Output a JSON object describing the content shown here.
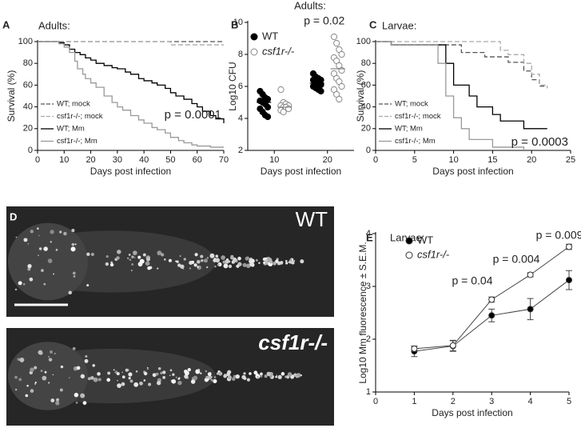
{
  "chart_data": [
    {
      "type": "step",
      "label": "A",
      "title": "Adults:",
      "xlabel": "Days post infection",
      "ylabel": "Survival (%)",
      "xlim": [
        0,
        70
      ],
      "xticks": [
        0,
        10,
        20,
        30,
        40,
        50,
        60,
        70
      ],
      "ylim": [
        0,
        100
      ],
      "yticks": [
        0,
        20,
        40,
        60,
        80,
        100
      ],
      "legend": "lower left",
      "annotation": "p = 0.0001",
      "series": [
        {
          "name": "WT; mock",
          "color": "#555555",
          "line_style": "dashed",
          "x": [
            0,
            70
          ],
          "values": [
            100,
            100
          ]
        },
        {
          "name": "csf1r-/-; mock",
          "color": "#aaaaaa",
          "line_style": "dashed",
          "x": [
            0,
            50,
            70
          ],
          "values": [
            100,
            97,
            97
          ]
        },
        {
          "name": "WT; Mm",
          "color": "#000000",
          "line_style": "solid",
          "x": [
            0,
            8,
            10,
            12,
            14,
            16,
            18,
            20,
            22,
            25,
            28,
            30,
            33,
            35,
            38,
            40,
            43,
            45,
            48,
            50,
            52,
            55,
            58,
            60,
            62,
            65,
            67,
            70
          ],
          "values": [
            100,
            99,
            97,
            93,
            90,
            88,
            85,
            83,
            80,
            78,
            76,
            75,
            72,
            70,
            66,
            64,
            62,
            60,
            57,
            53,
            50,
            47,
            43,
            40,
            36,
            32,
            29,
            25
          ]
        },
        {
          "name": "csf1r-/-; Mm",
          "color": "#999999",
          "line_style": "solid",
          "x": [
            0,
            8,
            10,
            12,
            14,
            15,
            17,
            18,
            20,
            22,
            25,
            28,
            30,
            32,
            35,
            38,
            40,
            43,
            45,
            48,
            50,
            53,
            55,
            58,
            60,
            65,
            70
          ],
          "values": [
            100,
            98,
            95,
            90,
            82,
            75,
            70,
            66,
            62,
            58,
            50,
            44,
            40,
            37,
            32,
            28,
            25,
            21,
            19,
            16,
            12,
            9,
            7,
            5,
            4,
            3,
            3
          ]
        }
      ]
    },
    {
      "type": "dot-strip",
      "label": "B",
      "title": "Adults:",
      "xlabel": "Days post infection",
      "ylabel": "Log10 CFU",
      "categories": [
        "10",
        "20"
      ],
      "ylim": [
        2,
        10
      ],
      "yticks": [
        2,
        4,
        6,
        8,
        10
      ],
      "annotation": "p = 0.02",
      "series": [
        {
          "name": "WT",
          "color": "#000000",
          "marker": "filled",
          "values": [
            [
              5.7,
              5.5,
              5.3,
              5.2,
              5.1,
              5.0,
              4.9,
              4.7,
              4.6,
              4.4,
              4.2,
              4.1
            ],
            [
              6.8,
              6.6,
              6.5,
              6.4,
              6.4,
              6.3,
              6.2,
              6.1,
              6.0,
              5.9,
              5.8,
              5.7
            ]
          ],
          "means": [
            5.0,
            6.2
          ]
        },
        {
          "name": "csf1r-/-",
          "color": "#888888",
          "marker": "open",
          "values": [
            [
              5.8,
              5.0,
              4.9,
              4.8,
              4.8,
              4.7,
              4.7,
              4.6,
              4.5,
              4.4
            ],
            [
              9.1,
              8.7,
              8.3,
              8.0,
              7.8,
              7.6,
              7.3,
              7.0,
              6.8,
              6.5,
              6.3,
              6.0,
              5.8,
              5.5,
              5.2
            ]
          ],
          "means": [
            4.7,
            7.1
          ]
        }
      ]
    },
    {
      "type": "step",
      "label": "C",
      "title": "Larvae:",
      "xlabel": "Days post infection",
      "ylabel": "Survival (%)",
      "xlim": [
        0,
        25
      ],
      "xticks": [
        0,
        5,
        10,
        15,
        20,
        25
      ],
      "ylim": [
        0,
        100
      ],
      "yticks": [
        0,
        20,
        40,
        60,
        80,
        100
      ],
      "legend": "lower left",
      "annotation": "p = 0.0003",
      "series": [
        {
          "name": "WT; mock",
          "color": "#555555",
          "line_style": "dashed",
          "x": [
            0,
            2,
            11,
            14,
            17,
            19,
            20,
            21,
            22
          ],
          "values": [
            100,
            97,
            90,
            86,
            81,
            73,
            65,
            59,
            59
          ]
        },
        {
          "name": "csf1r-/-; mock",
          "color": "#aaaaaa",
          "line_style": "dashed",
          "x": [
            0,
            16,
            17,
            19,
            20,
            21,
            22
          ],
          "values": [
            100,
            92,
            88,
            80,
            70,
            60,
            57
          ]
        },
        {
          "name": "WT; Mm",
          "color": "#000000",
          "line_style": "solid",
          "x": [
            0,
            2,
            8,
            9,
            10,
            12,
            13,
            15,
            16,
            19,
            22
          ],
          "values": [
            100,
            97,
            97,
            80,
            60,
            50,
            40,
            33,
            27,
            20,
            20
          ]
        },
        {
          "name": "csf1r-/-; Mm",
          "color": "#999999",
          "line_style": "solid",
          "x": [
            0,
            2,
            8,
            9,
            10,
            11,
            12,
            15,
            19
          ],
          "values": [
            100,
            97,
            80,
            50,
            30,
            20,
            10,
            3,
            0
          ]
        }
      ]
    },
    {
      "type": "line-error",
      "label": "E",
      "title": "Larvae:",
      "xlabel": "Days post infection",
      "ylabel": "Log10 Mm fluorescence ± S.E.M.",
      "xlim": [
        0,
        5
      ],
      "xticks": [
        0,
        1,
        2,
        3,
        4,
        5
      ],
      "ylim": [
        1,
        4
      ],
      "yticks": [
        1,
        2,
        3,
        4
      ],
      "annotations": [
        "p = 0.04",
        "p = 0.004",
        "p = 0.009"
      ],
      "series": [
        {
          "name": "WT",
          "color": "#000000",
          "marker": "filled",
          "x": [
            1,
            2,
            3,
            4,
            5
          ],
          "values": [
            1.77,
            1.87,
            2.45,
            2.57,
            3.12
          ],
          "errors": [
            0.1,
            0.1,
            0.12,
            0.2,
            0.18
          ]
        },
        {
          "name": "csf1r-/-",
          "color": "#555555",
          "marker": "open",
          "x": [
            1,
            2,
            3,
            4,
            5
          ],
          "values": [
            1.82,
            1.88,
            2.75,
            3.22,
            3.75
          ],
          "errors": [
            0.05,
            0.1,
            0.05,
            0.04,
            0.05
          ]
        }
      ]
    }
  ],
  "image_panel": {
    "label": "D",
    "images": [
      {
        "label": "WT"
      },
      {
        "label": "csf1r-/-"
      }
    ]
  }
}
